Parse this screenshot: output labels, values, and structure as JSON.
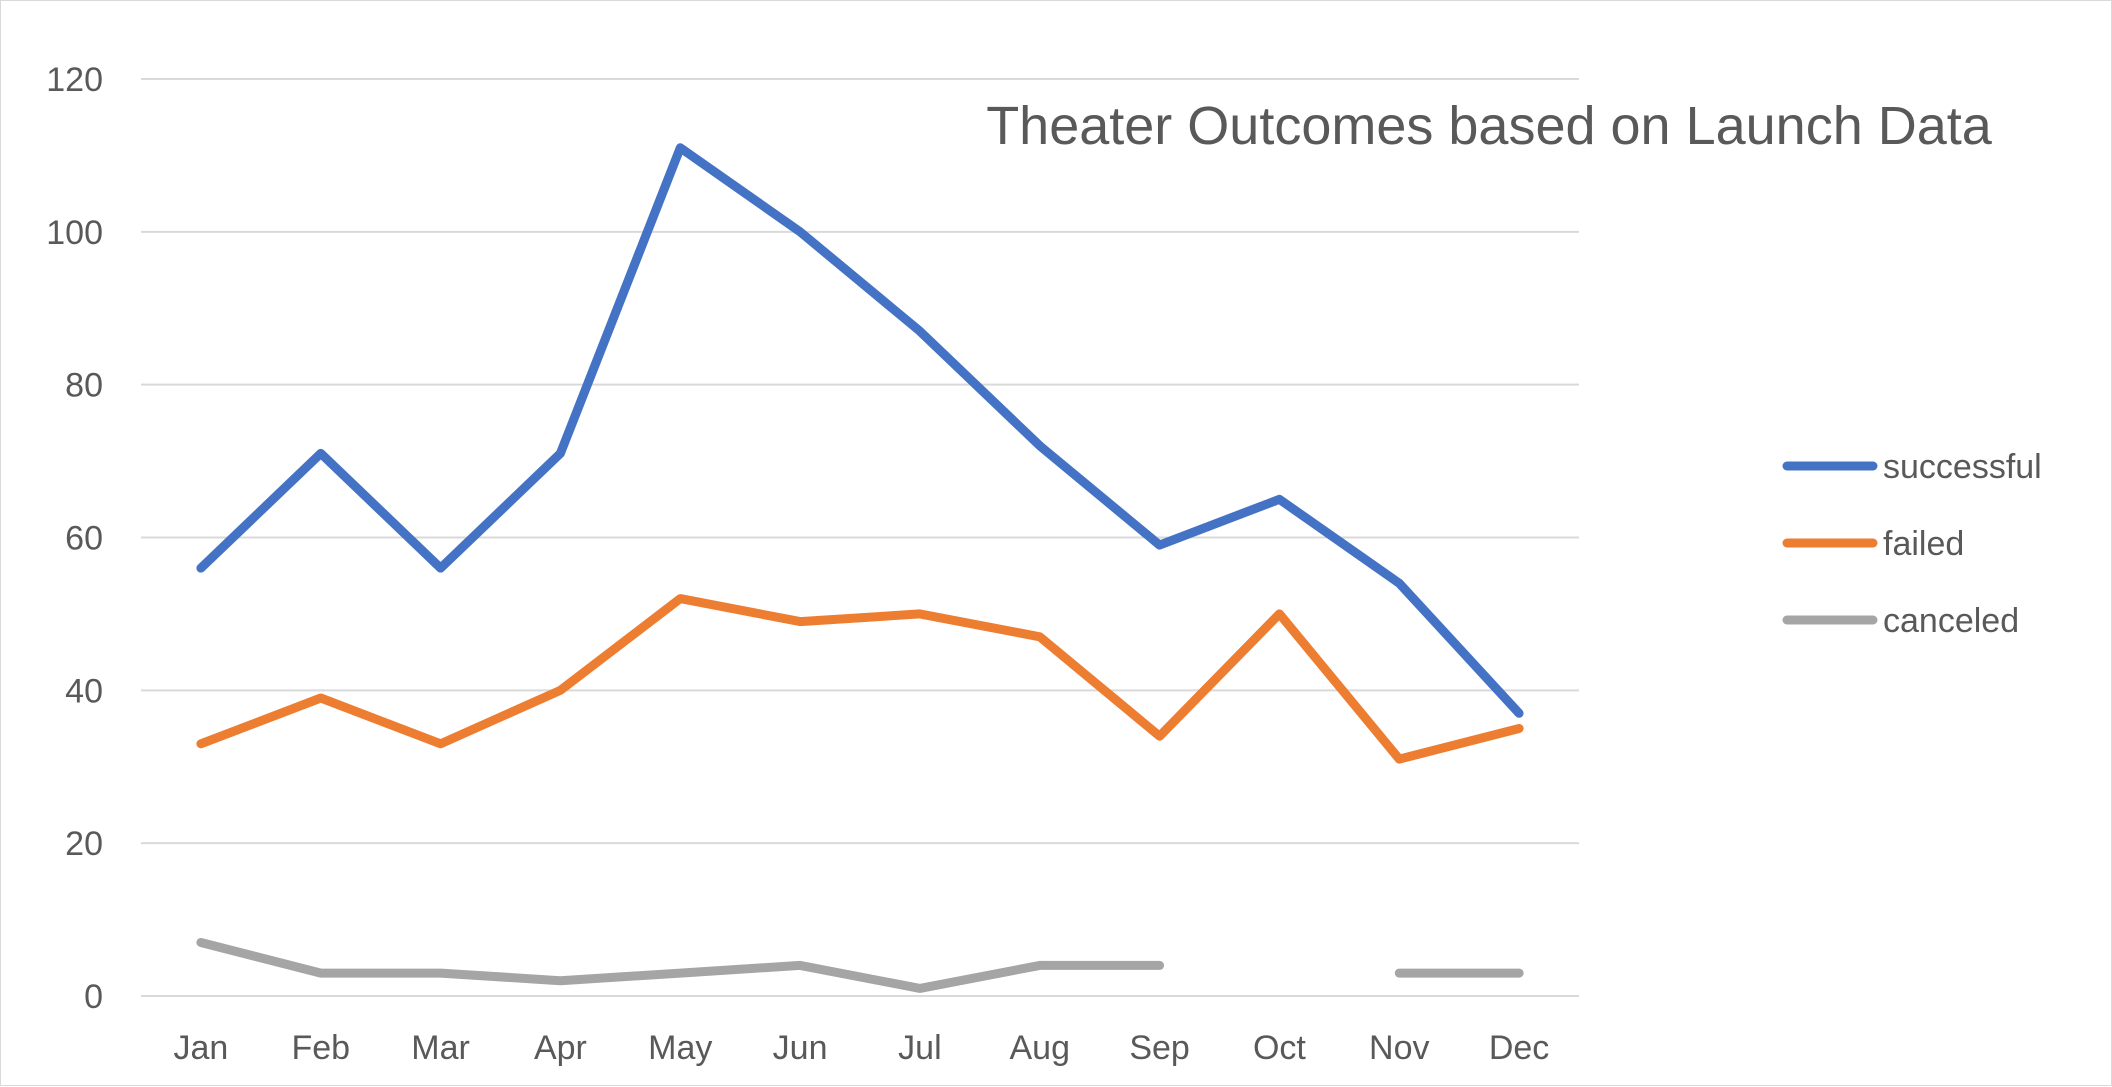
{
  "chart_data": {
    "type": "line",
    "title": "Theater Outcomes based on Launch Data",
    "categories": [
      "Jan",
      "Feb",
      "Mar",
      "Apr",
      "May",
      "Jun",
      "Jul",
      "Aug",
      "Sep",
      "Oct",
      "Nov",
      "Dec"
    ],
    "ylim": [
      0,
      120
    ],
    "yticks": [
      0,
      20,
      40,
      60,
      80,
      100,
      120
    ],
    "grid": true,
    "legend_position": "right",
    "series": [
      {
        "name": "successful",
        "color": "#4472C4",
        "values": [
          56,
          71,
          56,
          71,
          111,
          100,
          87,
          72,
          59,
          65,
          54,
          37
        ]
      },
      {
        "name": "failed",
        "color": "#ED7D31",
        "values": [
          33,
          39,
          33,
          40,
          52,
          49,
          50,
          47,
          34,
          50,
          31,
          35
        ]
      },
      {
        "name": "canceled",
        "color": "#A5A5A5",
        "values": [
          7,
          3,
          3,
          2,
          3,
          4,
          1,
          4,
          4,
          null,
          3,
          3
        ]
      }
    ]
  }
}
